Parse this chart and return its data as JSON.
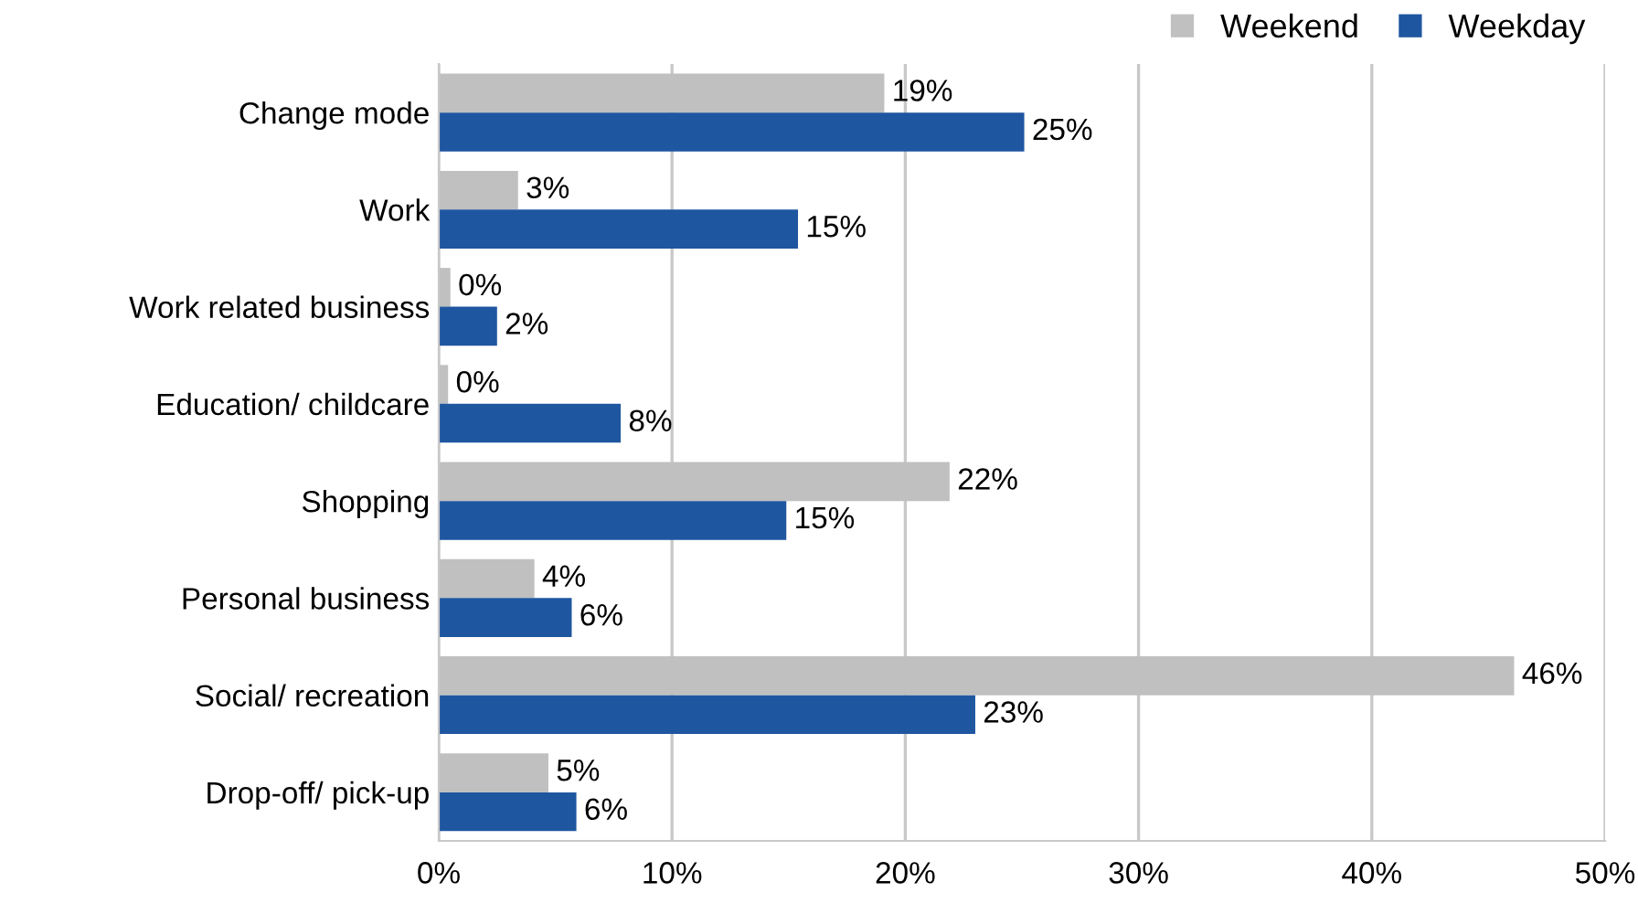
{
  "chart_data": {
    "type": "bar",
    "orientation": "horizontal",
    "categories": [
      "Change mode",
      "Work",
      "Work related business",
      "Education/ childcare",
      "Shopping",
      "Personal business",
      "Social/ recreation",
      "Drop-off/ pick-up"
    ],
    "series": [
      {
        "name": "Weekend",
        "color": "#c0c0c0",
        "values": [
          19.1,
          3.4,
          0.5,
          0.4,
          21.9,
          4.1,
          46.1,
          4.7
        ],
        "value_labels": [
          "19%",
          "3%",
          "0%",
          "0%",
          "22%",
          "4%",
          "46%",
          "5%"
        ]
      },
      {
        "name": "Weekday",
        "color": "#1f56a0",
        "values": [
          25.1,
          15.4,
          2.5,
          7.8,
          14.9,
          5.7,
          23.0,
          5.9
        ],
        "value_labels": [
          "25%",
          "15%",
          "2%",
          "8%",
          "15%",
          "6%",
          "23%",
          "6%"
        ]
      }
    ],
    "xlim": [
      0,
      50
    ],
    "xticks": [
      {
        "value": 0,
        "label": "0%"
      },
      {
        "value": 10,
        "label": "10%"
      },
      {
        "value": 20,
        "label": "20%"
      },
      {
        "value": 30,
        "label": "30%"
      },
      {
        "value": 40,
        "label": "40%"
      },
      {
        "value": 50,
        "label": "50%"
      }
    ],
    "grid": "x",
    "legend": "top right"
  }
}
